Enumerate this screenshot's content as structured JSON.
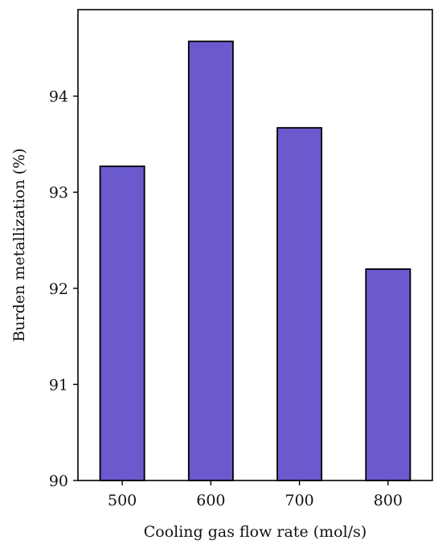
{
  "chart_data": {
    "type": "bar",
    "title": "",
    "xlabel": "Cooling gas flow rate (mol/s)",
    "ylabel": "Burden metallization (%)",
    "categories": [
      "500",
      "600",
      "700",
      "800"
    ],
    "values": [
      93.27,
      94.57,
      93.67,
      92.2
    ],
    "ylim": [
      90,
      94.9
    ],
    "yticks": [
      90,
      91,
      92,
      93,
      94
    ],
    "grid": false,
    "legend": "none",
    "colors": {
      "bar_fill": "#6a5acd",
      "bar_stroke": "#000000"
    }
  }
}
